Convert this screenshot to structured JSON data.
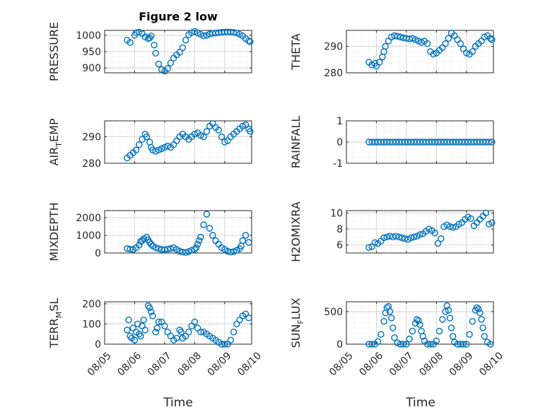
{
  "figure": {
    "title": "Figure 2 low"
  },
  "chart_data": [
    {
      "type": "scatter",
      "ylabel": "PRESSURE",
      "ylim": [
        885,
        1015
      ],
      "yticks": [
        900,
        950,
        1000
      ],
      "xlim": [
        0,
        4.9
      ],
      "xticks": [
        0,
        1,
        2,
        3,
        4,
        5
      ],
      "xticklabels": [
        "08/05",
        "08/06",
        "08/07",
        "08/08",
        "08/09",
        "08/10"
      ],
      "grid": true,
      "title": "Figure 2 low",
      "series": [
        {
          "x": [
            0.75,
            0.85,
            1.0,
            1.05,
            1.15,
            1.25,
            1.35,
            1.45,
            1.5,
            1.55,
            1.65,
            1.7,
            1.8,
            1.9,
            2.0,
            2.1,
            2.2,
            2.3,
            2.4,
            2.5,
            2.6,
            2.7,
            2.8,
            2.9,
            3.0,
            3.1,
            3.2,
            3.3,
            3.4,
            3.5,
            3.6,
            3.7,
            3.8,
            3.9,
            4.0,
            4.1,
            4.2,
            4.3,
            4.4,
            4.5,
            4.6,
            4.7,
            4.8,
            4.85
          ],
          "y": [
            985,
            978,
            1000,
            1008,
            1010,
            1005,
            995,
            990,
            992,
            998,
            970,
            945,
            912,
            895,
            890,
            898,
            915,
            930,
            940,
            948,
            962,
            985,
            1002,
            1008,
            1012,
            1007,
            1003,
            998,
            1000,
            1004,
            1006,
            1007,
            1008,
            1009,
            1010,
            1010,
            1010,
            1009,
            1007,
            1003,
            998,
            990,
            983,
            980
          ]
        }
      ]
    },
    {
      "type": "scatter",
      "ylabel": "THETA",
      "ylim": [
        280,
        296
      ],
      "yticks": [
        280,
        290
      ],
      "xlim": [
        0,
        4.9
      ],
      "xticks": [
        0,
        1,
        2,
        3,
        4,
        5
      ],
      "xticklabels": [
        "08/05",
        "08/06",
        "08/07",
        "08/08",
        "08/09",
        "08/10"
      ],
      "grid": true,
      "series": [
        {
          "x": [
            0.75,
            0.85,
            0.95,
            1.0,
            1.1,
            1.2,
            1.25,
            1.3,
            1.4,
            1.5,
            1.6,
            1.7,
            1.8,
            1.9,
            2.0,
            2.1,
            2.2,
            2.3,
            2.4,
            2.5,
            2.6,
            2.7,
            2.8,
            2.9,
            3.0,
            3.1,
            3.2,
            3.3,
            3.4,
            3.5,
            3.6,
            3.7,
            3.8,
            3.9,
            4.0,
            4.1,
            4.2,
            4.3,
            4.4,
            4.5,
            4.6,
            4.7,
            4.8,
            4.85
          ],
          "y": [
            284,
            283,
            283.5,
            282.5,
            284,
            286,
            288,
            290,
            292,
            293.5,
            294,
            293.8,
            293.5,
            293.2,
            293,
            292.8,
            293,
            292.5,
            292,
            291.5,
            292,
            291,
            288,
            287,
            287.5,
            288.5,
            289.5,
            291,
            293,
            295,
            294,
            292.5,
            291,
            289,
            287.5,
            287,
            288,
            290,
            291,
            292,
            293.5,
            294,
            293,
            292.5
          ]
        }
      ]
    },
    {
      "type": "scatter",
      "ylabel": "AIR_TEMP",
      "ylim": [
        280,
        296
      ],
      "yticks": [
        280,
        290
      ],
      "xlim": [
        0,
        4.9
      ],
      "xticks": [
        0,
        1,
        2,
        3,
        4,
        5
      ],
      "xticklabels": [
        "08/05",
        "08/06",
        "08/07",
        "08/08",
        "08/09",
        "08/10"
      ],
      "grid": true,
      "series": [
        {
          "x": [
            0.75,
            0.85,
            0.95,
            1.05,
            1.15,
            1.25,
            1.35,
            1.4,
            1.5,
            1.55,
            1.6,
            1.7,
            1.8,
            1.9,
            2.0,
            2.1,
            2.2,
            2.3,
            2.4,
            2.5,
            2.6,
            2.7,
            2.8,
            2.9,
            3.0,
            3.1,
            3.2,
            3.3,
            3.4,
            3.5,
            3.6,
            3.7,
            3.8,
            3.9,
            4.0,
            4.1,
            4.2,
            4.3,
            4.4,
            4.5,
            4.6,
            4.7,
            4.8,
            4.85
          ],
          "y": [
            282,
            283,
            284,
            285,
            287,
            289,
            291,
            290,
            288,
            286,
            285,
            284.5,
            285,
            285.5,
            286,
            286.5,
            286,
            287,
            288.5,
            290,
            291,
            290,
            289,
            290,
            291,
            291.5,
            290.5,
            290,
            292,
            294,
            295,
            293.5,
            292.5,
            290,
            288,
            288.5,
            290,
            291,
            292,
            293,
            294,
            294.5,
            293,
            292
          ]
        }
      ]
    },
    {
      "type": "scatter",
      "ylabel": "RAINFALL",
      "ylim": [
        -1,
        1
      ],
      "yticks": [
        -1,
        0,
        1
      ],
      "xlim": [
        0,
        4.9
      ],
      "xticks": [
        0,
        1,
        2,
        3,
        4,
        5
      ],
      "xticklabels": [
        "08/05",
        "08/06",
        "08/07",
        "08/08",
        "08/09",
        "08/10"
      ],
      "grid": true,
      "series": [
        {
          "x": [
            0.75,
            0.85,
            0.95,
            1.05,
            1.15,
            1.25,
            1.35,
            1.45,
            1.55,
            1.65,
            1.75,
            1.85,
            1.95,
            2.05,
            2.15,
            2.25,
            2.35,
            2.45,
            2.55,
            2.65,
            2.75,
            2.85,
            2.95,
            3.05,
            3.15,
            3.25,
            3.35,
            3.45,
            3.55,
            3.65,
            3.75,
            3.85,
            3.95,
            4.05,
            4.15,
            4.25,
            4.35,
            4.45,
            4.55,
            4.65,
            4.75,
            4.85
          ],
          "y": [
            0,
            0,
            0,
            0,
            0,
            0,
            0,
            0,
            0,
            0,
            0,
            0,
            0,
            0,
            0,
            0,
            0,
            0,
            0,
            0,
            0,
            0,
            0,
            0,
            0,
            0,
            0,
            0,
            0,
            0,
            0,
            0,
            0,
            0,
            0,
            0,
            0,
            0,
            0,
            0,
            0,
            0
          ]
        }
      ]
    },
    {
      "type": "scatter",
      "ylabel": "MIXDEPTH",
      "ylim": [
        0,
        2400
      ],
      "yticks": [
        0,
        1000,
        2000
      ],
      "xlim": [
        0,
        4.9
      ],
      "xticks": [
        0,
        1,
        2,
        3,
        4,
        5
      ],
      "xticklabels": [
        "08/05",
        "08/06",
        "08/07",
        "08/08",
        "08/09",
        "08/10"
      ],
      "grid": true,
      "series": [
        {
          "x": [
            0.75,
            0.85,
            0.95,
            1.05,
            1.15,
            1.2,
            1.25,
            1.3,
            1.4,
            1.45,
            1.5,
            1.55,
            1.6,
            1.7,
            1.8,
            1.9,
            2.0,
            2.1,
            2.2,
            2.3,
            2.4,
            2.5,
            2.6,
            2.7,
            2.8,
            2.9,
            3.0,
            3.05,
            3.1,
            3.15,
            3.2,
            3.3,
            3.4,
            3.5,
            3.6,
            3.7,
            3.8,
            3.9,
            4.0,
            4.1,
            4.2,
            4.3,
            4.4,
            4.5,
            4.55,
            4.6,
            4.7,
            4.8
          ],
          "y": [
            250,
            220,
            200,
            300,
            450,
            650,
            700,
            800,
            900,
            750,
            600,
            500,
            400,
            300,
            250,
            200,
            180,
            220,
            250,
            300,
            200,
            100,
            50,
            30,
            80,
            150,
            200,
            300,
            500,
            700,
            900,
            1600,
            2200,
            1400,
            1000,
            700,
            500,
            300,
            200,
            100,
            50,
            80,
            150,
            250,
            400,
            700,
            1000,
            600
          ]
        }
      ]
    },
    {
      "type": "scatter",
      "ylabel": "H2OMIXRA",
      "ylim": [
        5,
        10.3
      ],
      "yticks": [
        6,
        8,
        10
      ],
      "xlim": [
        0,
        4.9
      ],
      "xticks": [
        0,
        1,
        2,
        3,
        4,
        5
      ],
      "xticklabels": [
        "08/05",
        "08/06",
        "08/07",
        "08/08",
        "08/09",
        "08/10"
      ],
      "grid": true,
      "series": [
        {
          "x": [
            0.75,
            0.85,
            0.95,
            1.05,
            1.15,
            1.25,
            1.35,
            1.45,
            1.55,
            1.65,
            1.75,
            1.85,
            1.95,
            2.05,
            2.15,
            2.25,
            2.35,
            2.45,
            2.55,
            2.65,
            2.75,
            2.85,
            2.95,
            3.05,
            3.15,
            3.25,
            3.35,
            3.45,
            3.55,
            3.65,
            3.75,
            3.85,
            3.95,
            4.05,
            4.15,
            4.25,
            4.35,
            4.45,
            4.55,
            4.65,
            4.75,
            4.85
          ],
          "y": [
            5.7,
            5.8,
            6.3,
            6.2,
            6.5,
            6.9,
            7.0,
            7.1,
            7.0,
            7.1,
            7.0,
            6.9,
            6.8,
            6.7,
            6.9,
            7.0,
            7.1,
            7.3,
            7.4,
            7.7,
            8.0,
            7.8,
            7.5,
            6.2,
            6.8,
            8.3,
            8.5,
            8.3,
            8.2,
            8.3,
            8.6,
            8.8,
            9.2,
            9.5,
            9.3,
            8.4,
            8.8,
            9.2,
            9.6,
            10.0,
            8.6,
            8.8
          ]
        }
      ]
    },
    {
      "type": "scatter",
      "ylabel": "TERR_MSL",
      "ylim": [
        0,
        210
      ],
      "yticks": [
        0,
        100,
        200
      ],
      "xlim": [
        0,
        4.9
      ],
      "xticks": [
        0,
        1,
        2,
        3,
        4,
        5
      ],
      "xticklabels": [
        "08/05",
        "08/06",
        "08/07",
        "08/08",
        "08/09",
        "08/10"
      ],
      "grid": true,
      "series": [
        {
          "x": [
            0.75,
            0.8,
            0.85,
            0.9,
            0.95,
            1.0,
            1.05,
            1.1,
            1.15,
            1.2,
            1.25,
            1.3,
            1.35,
            1.45,
            1.5,
            1.55,
            1.6,
            1.7,
            1.75,
            1.8,
            1.9,
            2.0,
            2.1,
            2.2,
            2.3,
            2.4,
            2.5,
            2.55,
            2.6,
            2.7,
            2.8,
            2.9,
            3.0,
            3.1,
            3.2,
            3.3,
            3.4,
            3.5,
            3.6,
            3.7,
            3.8,
            3.9,
            4.0,
            4.1,
            4.2,
            4.3,
            4.4,
            4.5,
            4.6,
            4.7,
            4.8
          ],
          "y": [
            70,
            120,
            40,
            30,
            80,
            20,
            60,
            100,
            50,
            40,
            90,
            120,
            70,
            190,
            180,
            160,
            140,
            60,
            80,
            110,
            110,
            90,
            60,
            40,
            20,
            30,
            70,
            60,
            30,
            40,
            60,
            90,
            110,
            80,
            60,
            60,
            50,
            40,
            30,
            20,
            10,
            0,
            0,
            0,
            20,
            60,
            100,
            120,
            140,
            150,
            130
          ]
        }
      ]
    },
    {
      "type": "scatter",
      "ylabel": "SUN_FLUX",
      "ylim": [
        0,
        650
      ],
      "yticks": [
        0,
        500
      ],
      "xlim": [
        0,
        4.9
      ],
      "xticks": [
        0,
        1,
        2,
        3,
        4,
        5
      ],
      "xticklabels": [
        "08/05",
        "08/06",
        "08/07",
        "08/08",
        "08/09",
        "08/10"
      ],
      "grid": true,
      "series": [
        {
          "x": [
            0.75,
            0.85,
            0.95,
            1.05,
            1.15,
            1.25,
            1.3,
            1.35,
            1.4,
            1.45,
            1.5,
            1.55,
            1.6,
            1.7,
            1.8,
            1.9,
            2.0,
            2.1,
            2.2,
            2.3,
            2.35,
            2.4,
            2.45,
            2.5,
            2.55,
            2.6,
            2.7,
            2.8,
            2.9,
            3.0,
            3.1,
            3.2,
            3.3,
            3.35,
            3.4,
            3.45,
            3.5,
            3.55,
            3.6,
            3.7,
            3.8,
            3.9,
            4.0,
            4.1,
            4.2,
            4.3,
            4.35,
            4.4,
            4.45,
            4.5,
            4.55,
            4.6,
            4.7,
            4.8
          ],
          "y": [
            0,
            0,
            0,
            40,
            150,
            350,
            480,
            560,
            580,
            500,
            400,
            250,
            100,
            20,
            0,
            0,
            0,
            80,
            200,
            320,
            380,
            360,
            300,
            200,
            120,
            50,
            0,
            0,
            0,
            50,
            200,
            380,
            500,
            590,
            520,
            400,
            250,
            120,
            30,
            0,
            0,
            0,
            0,
            150,
            350,
            520,
            560,
            540,
            480,
            380,
            250,
            120,
            30,
            0
          ]
        }
      ]
    }
  ],
  "xlabel": "Time",
  "style": {
    "marker_color": "#0072BD",
    "axis_color": "#262626",
    "grid_color": "#d6d6d6"
  }
}
